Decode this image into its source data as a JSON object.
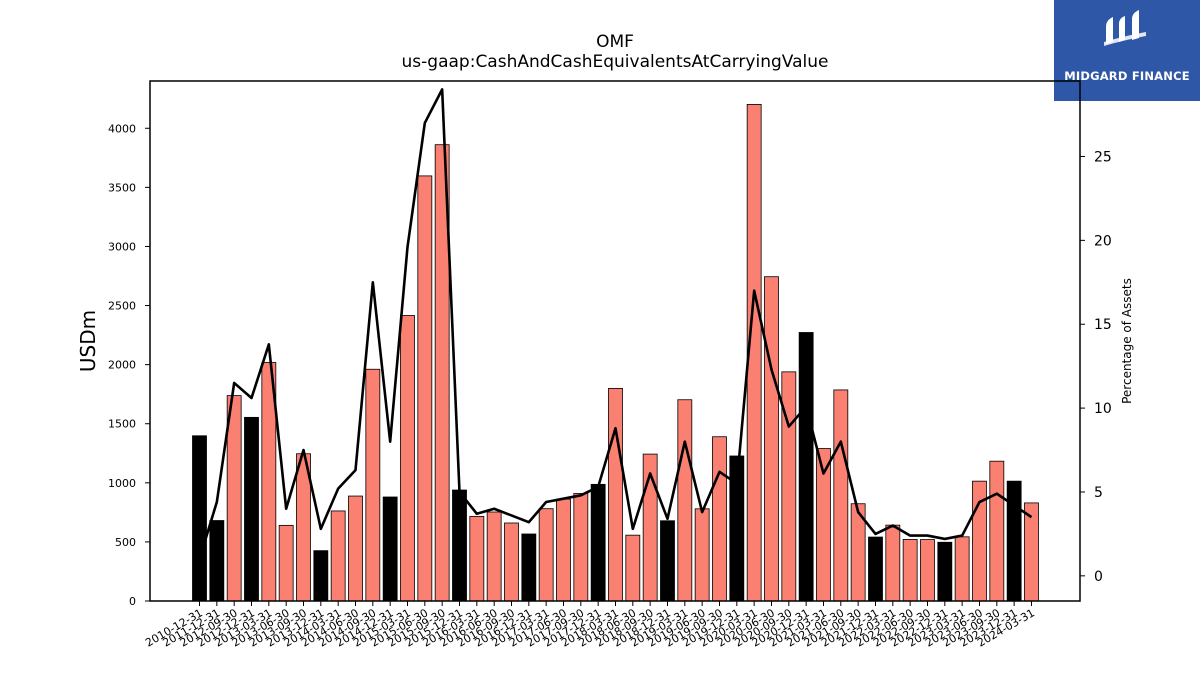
{
  "logo": {
    "text": "MIDGARD FINANCE",
    "background": "#2f57a7",
    "icon": "midgard-logo-icon"
  },
  "chart_data": {
    "type": "bar",
    "title": "OMF",
    "subtitle": "us-gaap:CashAndCashEquivalentsAtCarryingValue",
    "ylabel": "USDm",
    "y2label": "Percentage of Assets",
    "ylim": [
      0,
      4400
    ],
    "y2lim": [
      -1.5,
      29.5
    ],
    "yticks": [
      0,
      500,
      1000,
      1500,
      2000,
      2500,
      3000,
      3500,
      4000
    ],
    "y2ticks": [
      0,
      5,
      10,
      15,
      20,
      25
    ],
    "grid": false,
    "colors": {
      "q4_bar": "#000000",
      "other_bar": "#fa8072",
      "line": "#000000"
    },
    "categories": [
      "2010-12-31",
      "2011-12-31",
      "2012-09-30",
      "2012-12-31",
      "2013-03-31",
      "2013-06-30",
      "2013-09-30",
      "2013-12-31",
      "2014-03-31",
      "2014-06-30",
      "2014-09-30",
      "2014-12-31",
      "2015-03-31",
      "2015-06-30",
      "2015-09-30",
      "2015-12-31",
      "2016-03-31",
      "2016-06-30",
      "2016-09-30",
      "2016-12-31",
      "2017-03-31",
      "2017-06-30",
      "2017-09-30",
      "2017-12-31",
      "2018-03-31",
      "2018-06-30",
      "2018-09-30",
      "2018-12-31",
      "2019-03-31",
      "2019-06-30",
      "2019-09-30",
      "2019-12-31",
      "2020-03-31",
      "2020-06-30",
      "2020-09-30",
      "2020-12-31",
      "2021-03-31",
      "2021-06-30",
      "2021-09-30",
      "2021-12-31",
      "2022-03-31",
      "2022-06-30",
      "2022-09-30",
      "2022-12-31",
      "2023-03-31",
      "2023-06-30",
      "2023-09-30",
      "2023-12-31",
      "2024-03-31"
    ],
    "series": [
      {
        "kind": "bar",
        "values": [
          1398,
          681,
          1738,
          1554,
          2018,
          640,
          1246,
          426,
          762,
          888,
          1961,
          880,
          2416,
          3597,
          3861,
          939,
          716,
          753,
          660,
          567,
          781,
          862,
          910,
          987,
          1799,
          557,
          1243,
          679,
          1703,
          780,
          1390,
          1227,
          4202,
          2744,
          1939,
          2272,
          1290,
          1786,
          823,
          541,
          642,
          521,
          520,
          497,
          543,
          1014,
          1183,
          1014,
          830
        ]
      },
      {
        "kind": "line",
        "axis": "right",
        "values": [
          1.0,
          4.4,
          11.5,
          10.6,
          13.8,
          4.0,
          7.5,
          2.8,
          5.2,
          6.3,
          17.5,
          8.0,
          19.6,
          27.0,
          29.0,
          5.0,
          3.7,
          4.0,
          3.6,
          3.2,
          4.4,
          4.6,
          4.8,
          5.3,
          8.8,
          2.8,
          6.1,
          3.4,
          8.0,
          3.8,
          6.2,
          5.5,
          17.0,
          12.3,
          8.9,
          10.1,
          6.1,
          8.0,
          3.8,
          2.5,
          3.0,
          2.4,
          2.4,
          2.2,
          2.4,
          4.4,
          4.9,
          4.2,
          3.5
        ]
      }
    ]
  }
}
